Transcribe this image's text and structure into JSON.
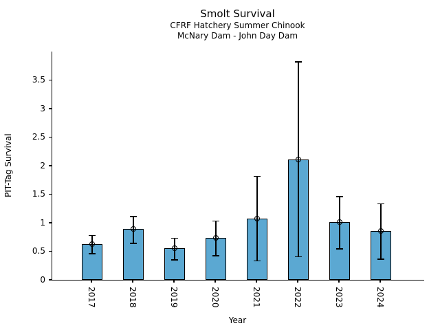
{
  "chart_data": {
    "type": "bar",
    "title": "Smolt Survival",
    "subtitle_line1": "CFRF Hatchery Summer Chinook",
    "subtitle_line2": "McNary Dam - John Day Dam",
    "xlabel": "Year",
    "ylabel": "PIT-Tag Survival",
    "categories": [
      "2017",
      "2018",
      "2019",
      "2020",
      "2021",
      "2022",
      "2023",
      "2024"
    ],
    "values": [
      0.63,
      0.89,
      0.55,
      0.73,
      1.07,
      2.11,
      1.01,
      0.85
    ],
    "error_low": [
      0.46,
      0.64,
      0.35,
      0.42,
      0.33,
      0.4,
      0.54,
      0.36
    ],
    "error_high": [
      0.78,
      1.11,
      0.73,
      1.03,
      1.81,
      3.82,
      1.46,
      1.33
    ],
    "ylim": [
      0,
      4
    ],
    "ytick_labels": [
      "0",
      "0.5",
      "1",
      "1.5",
      "2",
      "2.5",
      "3",
      "3.5"
    ],
    "x_tick_rotation": 90,
    "grid": false,
    "legend": false,
    "bar_color": "#5BA8D2",
    "bar_edge_color": "#000000",
    "error_color": "#000000",
    "marker": "open-circle"
  }
}
